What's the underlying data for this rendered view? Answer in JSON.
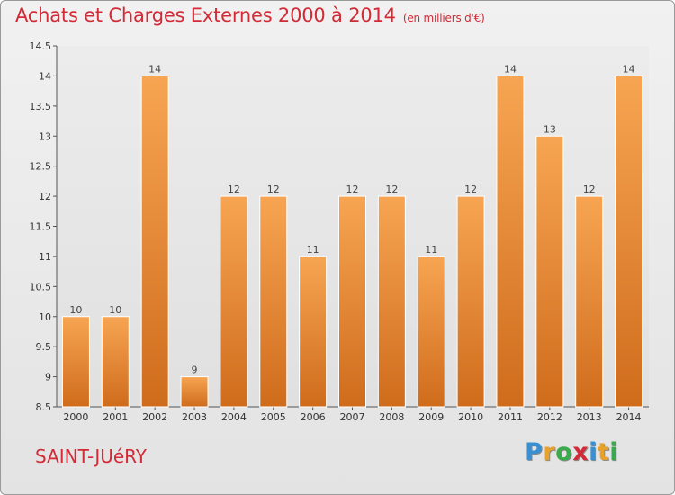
{
  "header": {
    "title": "Achats et Charges Externes 2000 à 2014",
    "subtitle": "(en milliers d'€)"
  },
  "footer": {
    "city": "SAINT-JUéRY",
    "logo_letters": [
      "P",
      "r",
      "o",
      "x",
      "i",
      "t",
      "i"
    ]
  },
  "colors": {
    "title": "#d22a36",
    "bar_top": "#f7a552",
    "bar_bottom": "#cf6c1c",
    "logo": [
      "#3a8fd1",
      "#e8a12a",
      "#3aaa4a",
      "#d22a36",
      "#3a8fd1",
      "#e8a12a",
      "#3aaa4a"
    ]
  },
  "chart_data": {
    "type": "bar",
    "title": "Achats et Charges Externes 2000 à 2014",
    "subtitle": "(en milliers d'€)",
    "categories": [
      "2000",
      "2001",
      "2002",
      "2003",
      "2004",
      "2005",
      "2006",
      "2007",
      "2008",
      "2009",
      "2010",
      "2011",
      "2012",
      "2013",
      "2014"
    ],
    "values": [
      10,
      10,
      14,
      9,
      12,
      12,
      11,
      12,
      12,
      11,
      12,
      14,
      13,
      12,
      14
    ],
    "ylim": [
      8.5,
      14.5
    ],
    "yticks": [
      "8.5",
      "9",
      "9.5",
      "10",
      "10.5",
      "11",
      "11.5",
      "12",
      "12.5",
      "13",
      "13.5",
      "14",
      "14.5"
    ],
    "grid": false,
    "xlabel": "",
    "ylabel": ""
  }
}
